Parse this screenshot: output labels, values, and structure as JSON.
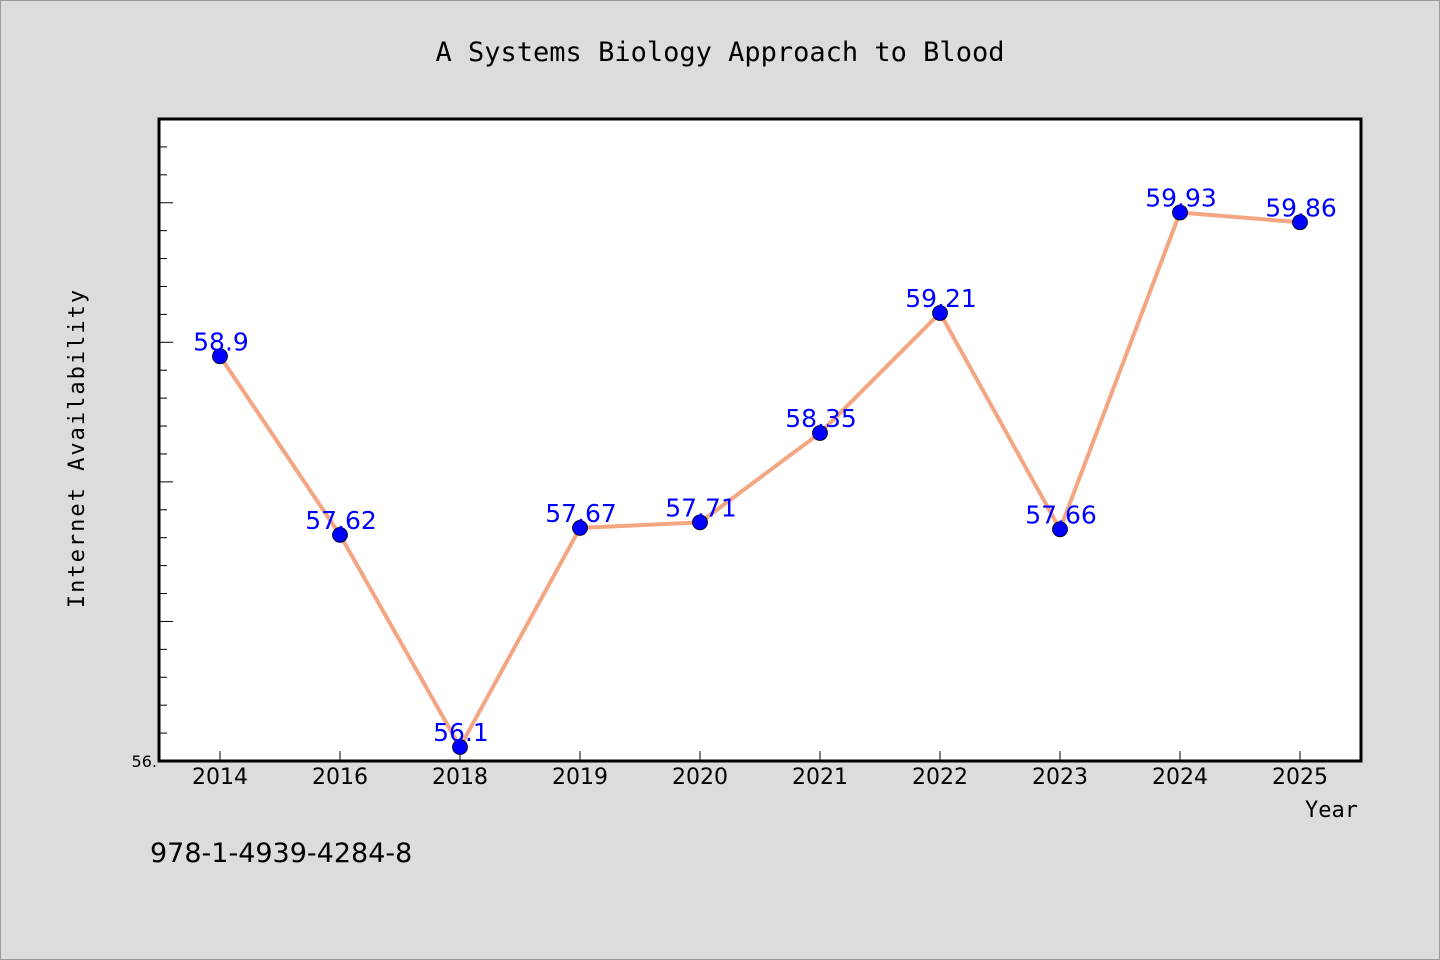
{
  "chart_data": {
    "type": "line",
    "title": "A Systems Biology Approach to Blood",
    "xlabel": "Year",
    "ylabel": "Internet Availability",
    "categories": [
      "2014",
      "2016",
      "2018",
      "2019",
      "2020",
      "2021",
      "2022",
      "2023",
      "2024",
      "2025"
    ],
    "series": [
      {
        "values": [
          58.9,
          57.62,
          56.1,
          57.67,
          57.71,
          58.35,
          59.21,
          57.66,
          59.93,
          59.86
        ],
        "labels": [
          "58.9",
          "57.62",
          "56.1",
          "57.67",
          "57.71",
          "58.35",
          "59.21",
          "57.66",
          "59.93",
          "59.86"
        ]
      }
    ],
    "ylim": [
      56.0,
      60.6
    ],
    "ytick_labels": [
      "56."
    ],
    "grid": false,
    "legend": "none",
    "colors": {
      "line": "#f4a582",
      "marker": "#0000ff",
      "data_label": "#0000ff",
      "background": "#dcdcdc",
      "plot_background": "#ffffff"
    }
  },
  "footnote": "978-1-4939-4284-8"
}
